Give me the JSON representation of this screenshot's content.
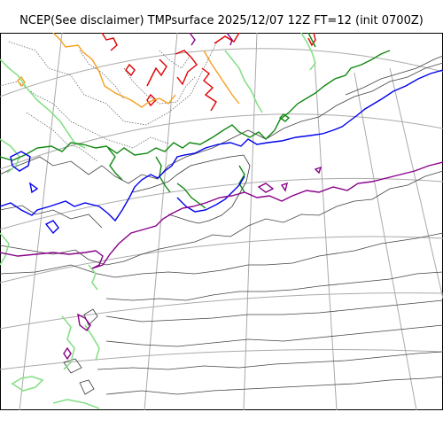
{
  "title": "NCEP(See disclaimer) TMPsurface 2025/12/07 12Z FT=12 (init 0700Z)",
  "colors": {
    "coastline": "#3a3a3a",
    "graticule": "#aaaaaa",
    "contour_dotted": "#555555",
    "contour_thin": "#444444",
    "isotherm_red": "#e00000",
    "isotherm_orange": "#f5a020",
    "isotherm_lightgreen": "#88e088",
    "isotherm_green": "#118811",
    "isotherm_blue": "#0000ee",
    "isotherm_purple": "#880088",
    "frame": "#000000"
  }
}
